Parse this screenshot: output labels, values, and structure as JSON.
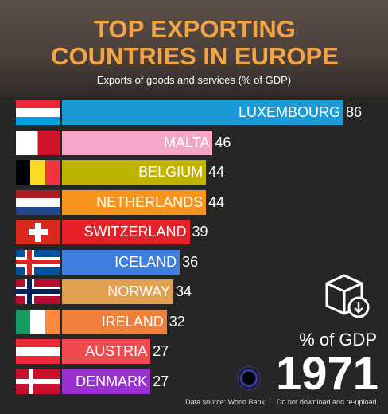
{
  "chart_data": {
    "type": "bar",
    "orientation": "horizontal",
    "title": "TOP EXPORTING COUNTRIES IN EUROPE",
    "subtitle": "Exports of goods and services (% of GDP)",
    "categories": [
      "LUXEMBOURG",
      "MALTA",
      "BELGIUM",
      "NETHERLANDS",
      "SWITZERLAND",
      "ICELAND",
      "NORWAY",
      "IRELAND",
      "AUSTRIA",
      "DENMARK"
    ],
    "series": [
      {
        "name": "% of GDP",
        "values": [
          86,
          46,
          44,
          44,
          39,
          36,
          34,
          32,
          27,
          27
        ],
        "colors": [
          "#1a9bd7",
          "#f4a6c8",
          "#bdb300",
          "#f7941d",
          "#e8202a",
          "#3f7fe0",
          "#e0a050",
          "#f07f3c",
          "#f04a50",
          "#9b30d0"
        ]
      }
    ],
    "year": "1971",
    "source": "Data source: World Bank",
    "note": "Do not download and re-upload."
  }
}
